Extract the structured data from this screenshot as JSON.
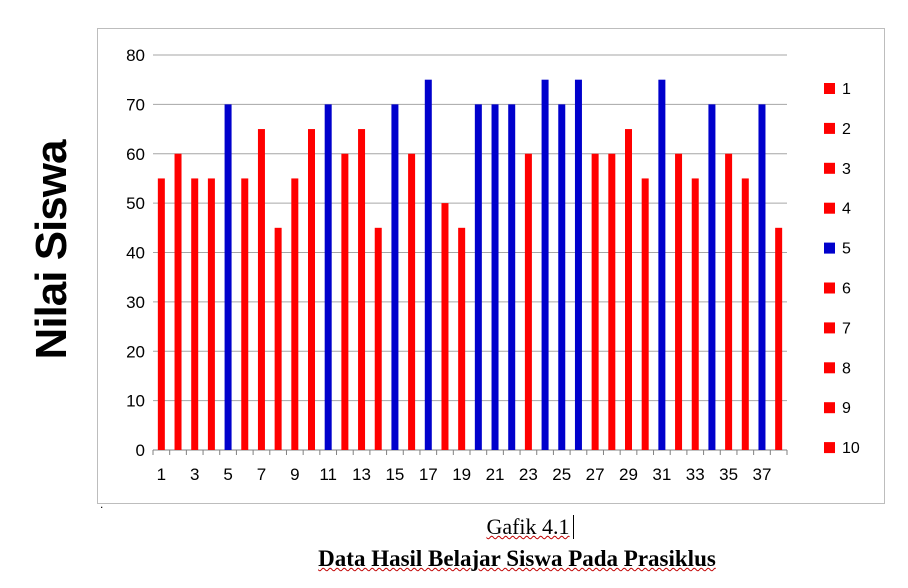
{
  "chart_data": {
    "type": "bar",
    "ylabel": "Nilai Siswa",
    "ylim": [
      0,
      80
    ],
    "yticks": [
      0,
      10,
      20,
      30,
      40,
      50,
      60,
      70,
      80
    ],
    "categories": [
      1,
      2,
      3,
      4,
      5,
      6,
      7,
      8,
      9,
      10,
      11,
      12,
      13,
      14,
      15,
      16,
      17,
      18,
      19,
      20,
      21,
      22,
      23,
      24,
      25,
      26,
      27,
      28,
      29,
      30,
      31,
      32,
      33,
      34,
      35,
      36,
      37,
      38
    ],
    "xtick_labels_shown": [
      1,
      3,
      5,
      7,
      9,
      11,
      13,
      15,
      17,
      19,
      21,
      23,
      25,
      27,
      29,
      31,
      33,
      35,
      37
    ],
    "values": [
      55,
      60,
      55,
      55,
      70,
      55,
      65,
      45,
      55,
      65,
      70,
      60,
      65,
      45,
      70,
      60,
      75,
      50,
      45,
      70,
      70,
      70,
      60,
      75,
      70,
      75,
      60,
      60,
      65,
      55,
      75,
      60,
      55,
      70,
      60,
      55,
      70,
      45
    ],
    "bar_colors": [
      "red",
      "red",
      "red",
      "red",
      "blue",
      "red",
      "red",
      "red",
      "red",
      "red",
      "blue",
      "red",
      "red",
      "red",
      "blue",
      "red",
      "blue",
      "red",
      "red",
      "blue",
      "blue",
      "blue",
      "red",
      "blue",
      "blue",
      "blue",
      "red",
      "red",
      "red",
      "red",
      "blue",
      "red",
      "red",
      "blue",
      "red",
      "red",
      "blue",
      "red"
    ],
    "colors": {
      "red": "#ff0000",
      "blue": "#0000cc",
      "grid": "#a6a6a6",
      "axis": "#808080"
    },
    "grid": true,
    "legend": {
      "placement": "right",
      "entries": [
        {
          "label": "1",
          "color": "red"
        },
        {
          "label": "2",
          "color": "red"
        },
        {
          "label": "3",
          "color": "red"
        },
        {
          "label": "4",
          "color": "red"
        },
        {
          "label": "5",
          "color": "blue"
        },
        {
          "label": "6",
          "color": "red"
        },
        {
          "label": "7",
          "color": "red"
        },
        {
          "label": "8",
          "color": "red"
        },
        {
          "label": "9",
          "color": "red"
        },
        {
          "label": "10",
          "color": "red"
        }
      ]
    }
  },
  "caption": {
    "line1": "Gafik 4.1",
    "line2": "Data Hasil Belajar Siswa Pada Prasiklus"
  }
}
